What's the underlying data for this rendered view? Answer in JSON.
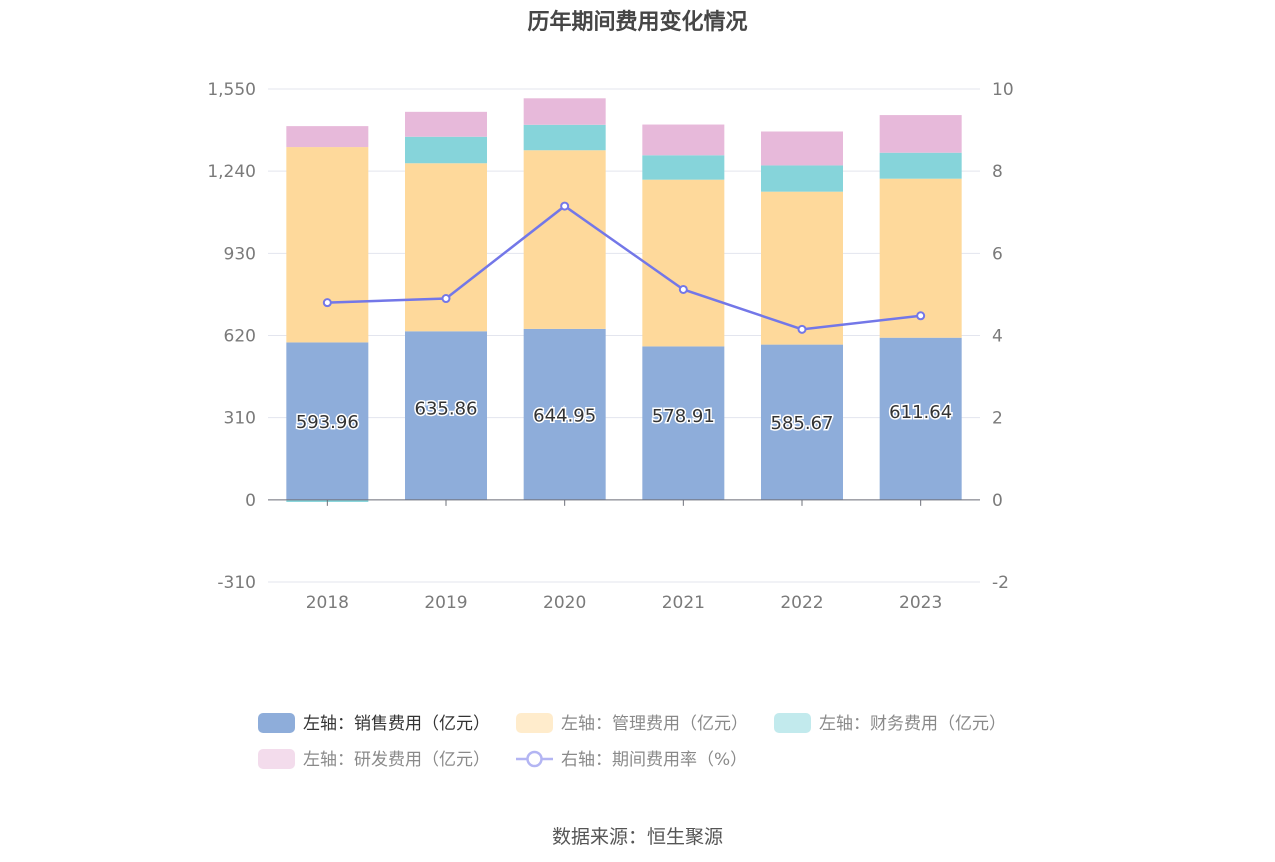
{
  "title": "历年期间费用变化情况",
  "source": "数据来源：恒生聚源",
  "chart_data": {
    "type": "bar",
    "stacked": true,
    "categories": [
      "2018",
      "2019",
      "2020",
      "2021",
      "2022",
      "2023"
    ],
    "left_axis": {
      "ylim": [
        -310,
        1550
      ],
      "ticks": [
        "-310",
        "0",
        "310",
        "620",
        "930",
        "1,240",
        "1,550"
      ]
    },
    "right_axis": {
      "ylim": [
        -2,
        10
      ],
      "ticks": [
        "-2",
        "0",
        "2",
        "4",
        "6",
        "8",
        "10"
      ]
    },
    "grid": true,
    "legend_position": "bottom",
    "series": [
      {
        "name": "左轴：销售费用（亿元）",
        "axis": "left",
        "type": "bar",
        "color": "#8eadda",
        "legend_color": "#8eadda",
        "values": [
          593.96,
          635.86,
          644.95,
          578.91,
          585.67,
          611.64
        ],
        "labels": [
          "593.96",
          "635.86",
          "644.95",
          "578.91",
          "585.67",
          "611.64"
        ]
      },
      {
        "name": "左轴：管理费用（亿元）",
        "axis": "left",
        "type": "bar",
        "color": "#fed99b",
        "legend_color": "#ffeccc",
        "values": [
          737,
          634,
          674,
          629,
          577,
          600
        ]
      },
      {
        "name": "左轴：财务费用（亿元）",
        "axis": "left",
        "type": "bar",
        "color": "#86d4da",
        "legend_color": "#c2eaed",
        "values": [
          -8,
          100,
          96,
          92,
          99,
          98
        ]
      },
      {
        "name": "左轴：研发费用（亿元）",
        "axis": "left",
        "type": "bar",
        "color": "#e7b9da",
        "legend_color": "#f3dcec",
        "values": [
          79,
          94,
          100,
          116,
          128,
          142
        ]
      },
      {
        "name": "右轴：期间费用率（%）",
        "axis": "right",
        "type": "line",
        "color": "#7377e8",
        "legend_color": "#b3b5f3",
        "values": [
          4.8,
          4.9,
          7.15,
          5.12,
          4.15,
          4.48
        ]
      }
    ]
  }
}
